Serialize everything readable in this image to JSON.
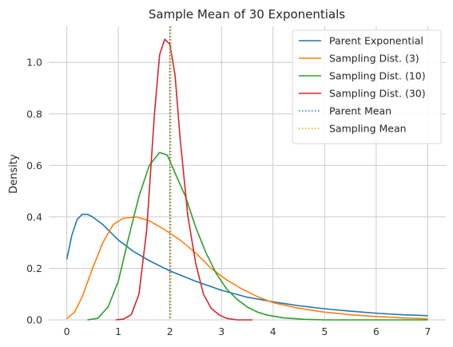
{
  "chart_data": {
    "type": "line",
    "title": "Sample Mean of 30 Exponentials",
    "xlabel": "",
    "ylabel": "Density",
    "xlim": [
      -0.35,
      7.35
    ],
    "ylim": [
      0,
      1.14
    ],
    "xticks": [
      0,
      1,
      2,
      3,
      4,
      5,
      6,
      7
    ],
    "yticks": [
      0.0,
      0.2,
      0.4,
      0.6,
      0.8,
      1.0
    ],
    "xtick_labels": [
      "0",
      "1",
      "2",
      "3",
      "4",
      "5",
      "6",
      "7"
    ],
    "ytick_labels": [
      "0.0",
      "0.2",
      "0.4",
      "0.6",
      "0.8",
      "1.0"
    ],
    "grid": true,
    "legend_position": "top-right",
    "series": [
      {
        "name": "Parent Exponential",
        "color": "#1f77b4",
        "style": "solid",
        "points": [
          [
            0.0,
            0.235
          ],
          [
            0.1,
            0.33
          ],
          [
            0.2,
            0.39
          ],
          [
            0.3,
            0.41
          ],
          [
            0.4,
            0.41
          ],
          [
            0.5,
            0.4
          ],
          [
            0.7,
            0.37
          ],
          [
            1.0,
            0.31
          ],
          [
            1.3,
            0.265
          ],
          [
            1.6,
            0.23
          ],
          [
            2.0,
            0.19
          ],
          [
            2.5,
            0.15
          ],
          [
            3.0,
            0.115
          ],
          [
            3.5,
            0.088
          ],
          [
            4.0,
            0.07
          ],
          [
            4.5,
            0.055
          ],
          [
            5.0,
            0.043
          ],
          [
            5.5,
            0.034
          ],
          [
            6.0,
            0.026
          ],
          [
            6.5,
            0.02
          ],
          [
            7.0,
            0.016
          ]
        ]
      },
      {
        "name": "Sampling Dist. (3)",
        "color": "#ff7f0e",
        "style": "solid",
        "points": [
          [
            0.0,
            0.005
          ],
          [
            0.15,
            0.03
          ],
          [
            0.3,
            0.09
          ],
          [
            0.5,
            0.2
          ],
          [
            0.7,
            0.3
          ],
          [
            0.9,
            0.37
          ],
          [
            1.1,
            0.395
          ],
          [
            1.35,
            0.4
          ],
          [
            1.6,
            0.385
          ],
          [
            1.9,
            0.35
          ],
          [
            2.2,
            0.31
          ],
          [
            2.5,
            0.26
          ],
          [
            2.8,
            0.2
          ],
          [
            3.1,
            0.155
          ],
          [
            3.4,
            0.12
          ],
          [
            3.7,
            0.09
          ],
          [
            4.0,
            0.067
          ],
          [
            4.5,
            0.045
          ],
          [
            5.0,
            0.03
          ],
          [
            5.5,
            0.02
          ],
          [
            6.0,
            0.013
          ],
          [
            6.5,
            0.008
          ],
          [
            7.0,
            0.004
          ]
        ]
      },
      {
        "name": "Sampling Dist. (10)",
        "color": "#2ca02c",
        "style": "solid",
        "points": [
          [
            0.4,
            0.0
          ],
          [
            0.6,
            0.006
          ],
          [
            0.8,
            0.05
          ],
          [
            1.0,
            0.15
          ],
          [
            1.2,
            0.32
          ],
          [
            1.4,
            0.48
          ],
          [
            1.6,
            0.6
          ],
          [
            1.8,
            0.65
          ],
          [
            1.95,
            0.64
          ],
          [
            2.1,
            0.57
          ],
          [
            2.3,
            0.48
          ],
          [
            2.5,
            0.36
          ],
          [
            2.7,
            0.26
          ],
          [
            2.9,
            0.18
          ],
          [
            3.1,
            0.12
          ],
          [
            3.3,
            0.08
          ],
          [
            3.5,
            0.05
          ],
          [
            3.7,
            0.03
          ],
          [
            3.9,
            0.018
          ],
          [
            4.2,
            0.008
          ],
          [
            4.6,
            0.002
          ],
          [
            5.0,
            0.0
          ],
          [
            6.0,
            0.0
          ],
          [
            7.0,
            0.0
          ]
        ]
      },
      {
        "name": "Sampling Dist. (30)",
        "color": "#d62728",
        "style": "solid",
        "points": [
          [
            0.95,
            0.0
          ],
          [
            1.1,
            0.003
          ],
          [
            1.25,
            0.02
          ],
          [
            1.4,
            0.1
          ],
          [
            1.55,
            0.35
          ],
          [
            1.7,
            0.8
          ],
          [
            1.8,
            1.03
          ],
          [
            1.9,
            1.09
          ],
          [
            2.0,
            1.07
          ],
          [
            2.1,
            0.95
          ],
          [
            2.2,
            0.7
          ],
          [
            2.35,
            0.4
          ],
          [
            2.5,
            0.22
          ],
          [
            2.65,
            0.1
          ],
          [
            2.8,
            0.045
          ],
          [
            2.95,
            0.02
          ],
          [
            3.1,
            0.006
          ],
          [
            3.3,
            0.0
          ],
          [
            3.6,
            0.0
          ]
        ]
      },
      {
        "name": "Parent Mean",
        "color": "#1f77b4",
        "style": "dotted",
        "vline_x": 2.0
      },
      {
        "name": "Sampling Mean",
        "color": "#ffa500",
        "style": "dotted",
        "vline_x": 2.02
      }
    ]
  }
}
